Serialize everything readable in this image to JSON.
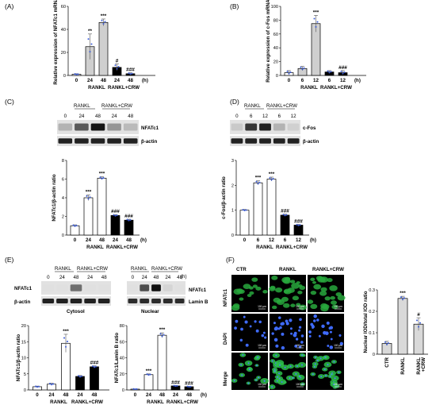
{
  "panel_labels": [
    "(A)",
    "(B)",
    "(C)",
    "(D)",
    "(E)",
    "(F)"
  ],
  "common": {
    "rankl": "RANKL",
    "rankl_crw": "RANKL+CRW",
    "unit_h": "(h)",
    "actin": "β-actin",
    "lamin": "Lamin B",
    "nfatc1": "NFATc1",
    "cfos": "c-Fos",
    "cytosol": "Cytosol",
    "nuclear": "Nuclear",
    "scale_bar": "100 μm"
  },
  "blots": {
    "C": {
      "lanes": [
        "0",
        "24",
        "48",
        "24",
        "48"
      ],
      "bands": {
        "NFATc1": [
          0.25,
          0.65,
          0.95,
          0.38,
          0.22
        ],
        "actin": [
          0.9,
          0.9,
          0.9,
          0.9,
          0.9
        ]
      }
    },
    "D": {
      "lanes": [
        "0",
        "6",
        "12",
        "6",
        "12"
      ],
      "bands": {
        "cFos": [
          0.15,
          0.8,
          0.9,
          0.25,
          0.12
        ],
        "actin": [
          0.9,
          0.9,
          0.9,
          0.9,
          0.9
        ]
      }
    },
    "E_cyto": {
      "lanes": [
        "0",
        "24",
        "48",
        "24",
        "48"
      ],
      "bands": {
        "NFATc1": [
          0.05,
          0.05,
          0.55,
          0.05,
          0.05
        ],
        "actin": [
          0.9,
          0.9,
          0.9,
          0.9,
          0.9
        ]
      }
    },
    "E_nuc": {
      "lanes": [
        "0",
        "24",
        "48",
        "24",
        "48"
      ],
      "bands": {
        "NFATc1": [
          0.05,
          0.7,
          0.98,
          0.1,
          0.05
        ],
        "lamin": [
          0.85,
          0.85,
          0.85,
          0.85,
          0.85
        ]
      }
    }
  },
  "images": {
    "columns": [
      "CTR",
      "RANKL",
      "RANKL+CRW"
    ],
    "rows": [
      "NFATc1",
      "DAPI",
      "Merge"
    ]
  },
  "chart_data": [
    {
      "id": "A",
      "type": "bar",
      "ylabel": "Relative expression of NFATc1 mRNA",
      "ylim": [
        0,
        60
      ],
      "yticks": [
        0,
        20,
        40,
        60
      ],
      "categories": [
        "0",
        "24",
        "48",
        "24",
        "48"
      ],
      "values": [
        1,
        25,
        46,
        7,
        1.5
      ],
      "errors": [
        0.5,
        11,
        3,
        3,
        0.8
      ],
      "fills": [
        "#ffffff",
        "#cfcfcf",
        "#cfcfcf",
        "#000000",
        "#000000"
      ],
      "stars": [
        "",
        "**",
        "***",
        "#",
        "###"
      ]
    },
    {
      "id": "B",
      "type": "bar",
      "ylabel": "Relative expression of c-Fos mRNA",
      "ylim": [
        0,
        100
      ],
      "yticks": [
        0,
        20,
        40,
        60,
        80,
        100
      ],
      "categories": [
        "0",
        "6",
        "12",
        "6",
        "12"
      ],
      "values": [
        4,
        10,
        75,
        5,
        4
      ],
      "errors": [
        3,
        3,
        12,
        2,
        3
      ],
      "fills": [
        "#ffffff",
        "#cfcfcf",
        "#cfcfcf",
        "#000000",
        "#000000"
      ],
      "stars": [
        "",
        "",
        "***",
        "",
        "###"
      ]
    },
    {
      "id": "C",
      "type": "bar",
      "ylabel": "NFATc1/β-actin ratio",
      "ylim": [
        0,
        8
      ],
      "yticks": [
        0,
        2,
        4,
        6,
        8
      ],
      "categories": [
        "0",
        "24",
        "48",
        "24",
        "48"
      ],
      "values": [
        1,
        4,
        6.1,
        2.1,
        1.6
      ],
      "errors": [
        0.1,
        0.3,
        0.15,
        0.1,
        0.1
      ],
      "fills": [
        "#ffffff",
        "#ffffff",
        "#ffffff",
        "#000000",
        "#000000"
      ],
      "stars": [
        "",
        "***",
        "***",
        "###",
        "###"
      ]
    },
    {
      "id": "D",
      "type": "bar",
      "ylabel": "c-Fos/β-actin ratio",
      "ylim": [
        0,
        3
      ],
      "yticks": [
        0,
        1,
        2,
        3
      ],
      "categories": [
        "0",
        "6",
        "12",
        "6",
        "12"
      ],
      "values": [
        1,
        2.1,
        2.25,
        0.8,
        0.4
      ],
      "errors": [
        0.03,
        0.08,
        0.08,
        0.04,
        0.03
      ],
      "fills": [
        "#ffffff",
        "#ffffff",
        "#ffffff",
        "#000000",
        "#000000"
      ],
      "stars": [
        "",
        "***",
        "***",
        "###",
        "###"
      ]
    },
    {
      "id": "E1",
      "type": "bar",
      "ylabel": "NFATc1/β-actin ratio",
      "ylim": [
        0,
        20
      ],
      "yticks": [
        0,
        5,
        10,
        15,
        20
      ],
      "categories": [
        "0",
        "24",
        "48",
        "24",
        "48"
      ],
      "values": [
        1,
        1.8,
        14.5,
        4.2,
        7.2
      ],
      "errors": [
        0.2,
        0.3,
        2.8,
        0.3,
        0.3
      ],
      "fills": [
        "#ffffff",
        "#ffffff",
        "#ffffff",
        "#000000",
        "#000000"
      ],
      "stars": [
        "",
        "",
        "***",
        "",
        "###"
      ]
    },
    {
      "id": "E2",
      "type": "bar",
      "ylabel": "NFATc1/Lamin B ratio",
      "ylim": [
        0,
        80
      ],
      "yticks": [
        0,
        20,
        40,
        60,
        80
      ],
      "categories": [
        "0",
        "24",
        "48",
        "24",
        "48"
      ],
      "values": [
        1,
        19,
        68,
        5,
        4
      ],
      "errors": [
        0.3,
        1,
        3,
        0.5,
        0.5
      ],
      "fills": [
        "#ffffff",
        "#ffffff",
        "#ffffff",
        "#000000",
        "#000000"
      ],
      "stars": [
        "",
        "***",
        "***",
        "###",
        "###"
      ]
    },
    {
      "id": "F",
      "type": "bar",
      "ylabel": "Nuclear IOD/total IOD ratio",
      "ylim": [
        0,
        0.3
      ],
      "yticks": [
        0,
        0.1,
        0.2,
        0.3
      ],
      "categories": [
        "CTR",
        "RANKL",
        "RANKL +CRW"
      ],
      "values": [
        0.05,
        0.26,
        0.14
      ],
      "errors": [
        0.01,
        0.01,
        0.03
      ],
      "fills": [
        "#d9d9d9",
        "#d9d9d9",
        "#d9d9d9"
      ],
      "stars": [
        "",
        "***",
        "#"
      ]
    }
  ]
}
